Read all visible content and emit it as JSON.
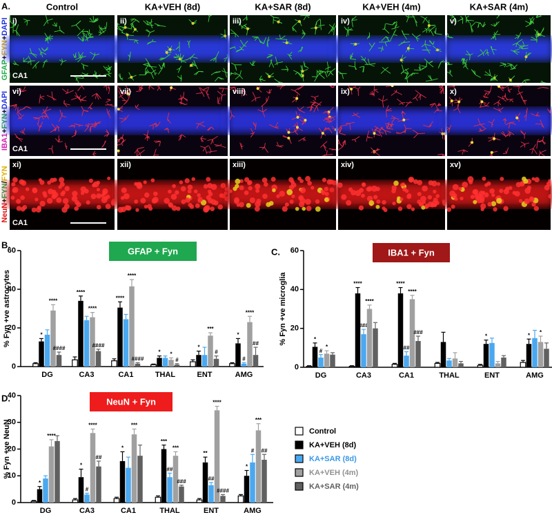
{
  "panel_a": {
    "label": "A.",
    "columns": [
      "Control",
      "KA+VEH (8d)",
      "KA+SAR (8d)",
      "KA+VEH (4m)",
      "KA+SAR (4m)"
    ],
    "rows": [
      {
        "label_parts": [
          {
            "text": "GFAP",
            "color": "#22b04a"
          },
          {
            "text": "+",
            "color": "#000000"
          },
          {
            "text": "FYN",
            "color": "#e0b000"
          },
          {
            "text": "+",
            "color": "#000000"
          },
          {
            "text": "DAPI",
            "color": "#2233dd"
          }
        ],
        "cells": [
          "i)",
          "ii)",
          "iii)",
          "iv)",
          "v)"
        ],
        "region": "CA1"
      },
      {
        "label_parts": [
          {
            "text": "IBA1",
            "color": "#d020b0"
          },
          {
            "text": "+",
            "color": "#000000"
          },
          {
            "text": "FYN",
            "color": "#22b04a"
          },
          {
            "text": "+",
            "color": "#000000"
          },
          {
            "text": "DAPI",
            "color": "#2233dd"
          }
        ],
        "cells": [
          "vi)",
          "vii)",
          "viii)",
          "ix)",
          "x)"
        ],
        "region": "CA1"
      },
      {
        "label_parts": [
          {
            "text": "NeuN",
            "color": "#e01010"
          },
          {
            "text": "+",
            "color": "#000000"
          },
          {
            "text": "FYN",
            "color": "#22b04a"
          },
          {
            "text": "/",
            "color": "#000000"
          },
          {
            "text": "FYN",
            "color": "#e0b000"
          }
        ],
        "cells": [
          "xi)",
          "xii)",
          "xiii)",
          "xiv)",
          "xv)"
        ],
        "region": "CA1"
      }
    ]
  },
  "legend": {
    "entries": [
      {
        "name": "Control",
        "color": "#ffffff",
        "text_color": "#000000"
      },
      {
        "name": "KA+VEH (8d)",
        "color": "#000000",
        "text_color": "#000000"
      },
      {
        "name": "KA+SAR (8d)",
        "color": "#4aa8f0",
        "text_color": "#3a98e8"
      },
      {
        "name": "KA+VEH (4m)",
        "color": "#a0a0a0",
        "text_color": "#909090"
      },
      {
        "name": "KA+SAR (4m)",
        "color": "#606060",
        "text_color": "#606060"
      }
    ]
  },
  "chart_data": [
    {
      "type": "bar",
      "panel": "B.",
      "title": "GFAP + Fyn",
      "title_color": "#1fa84f",
      "ylabel": "% Fyn +ve astrocytes",
      "categories": [
        "DG",
        "CA3",
        "CA1",
        "THAL",
        "ENT",
        "AMG"
      ],
      "ylim": [
        0,
        60
      ],
      "yticks": [
        0,
        20,
        40,
        60
      ],
      "series": [
        {
          "values": [
            1.5,
            3.5,
            3,
            1,
            2.5,
            1.5
          ],
          "errors": [
            0.5,
            1.5,
            1,
            0.3,
            1,
            0.5
          ],
          "annotations": [
            null,
            null,
            null,
            null,
            null,
            null
          ]
        },
        {
          "values": [
            13,
            34,
            30.5,
            4.5,
            6,
            12
          ],
          "errors": [
            1.5,
            2.5,
            3,
            1,
            2,
            2.5
          ],
          "annotations": [
            "*",
            "****",
            "****",
            "*",
            "*",
            "*"
          ]
        },
        {
          "values": [
            16.5,
            24,
            24.5,
            4.5,
            6,
            1.5
          ],
          "errors": [
            2.5,
            2,
            2.5,
            1,
            4,
            0.5
          ],
          "annotations": [
            null,
            null,
            null,
            null,
            null,
            "#"
          ]
        },
        {
          "values": [
            29,
            25.5,
            41.5,
            3.5,
            16,
            23
          ],
          "errors": [
            3,
            2.5,
            3.5,
            1,
            1.5,
            3
          ],
          "annotations": [
            "****",
            "****",
            "****",
            "*",
            "***",
            "****"
          ]
        },
        {
          "values": [
            6,
            8,
            1.5,
            1,
            4,
            6
          ],
          "errors": [
            1.5,
            1,
            0.5,
            0.5,
            1.5,
            4
          ],
          "annotations": [
            "####",
            "####",
            "####",
            "#",
            "#",
            "##"
          ]
        }
      ]
    },
    {
      "type": "bar",
      "panel": "C.",
      "title": "IBA1 + Fyn",
      "title_color": "#a01818",
      "ylabel": "% Fyn +ve microglia",
      "categories": [
        "DG",
        "CA3",
        "CA1",
        "THAL",
        "ENT",
        "AMG"
      ],
      "ylim": [
        0,
        60
      ],
      "yticks": [
        0,
        20,
        40,
        60
      ],
      "series": [
        {
          "values": [
            0.5,
            0.5,
            1.5,
            2,
            1,
            2.5
          ],
          "errors": [
            0.3,
            0.3,
            0.5,
            0.5,
            0.5,
            1
          ],
          "annotations": [
            null,
            null,
            null,
            null,
            null,
            null
          ]
        },
        {
          "values": [
            10.5,
            38,
            38,
            13,
            12,
            12
          ],
          "errors": [
            2,
            3,
            3,
            5,
            2,
            2.5
          ],
          "annotations": [
            "*",
            "****",
            "****",
            null,
            "*",
            "*"
          ]
        },
        {
          "values": [
            5,
            17,
            6,
            3.5,
            12.5,
            15
          ],
          "errors": [
            1.5,
            2.5,
            2,
            1,
            2.5,
            4
          ],
          "annotations": [
            "#",
            "###",
            "####",
            null,
            null,
            null
          ]
        },
        {
          "values": [
            7,
            30,
            35,
            4.5,
            2,
            13
          ],
          "errors": [
            1.5,
            2,
            2,
            3,
            1,
            3
          ],
          "annotations": [
            "*",
            "****",
            "****",
            null,
            null,
            "*"
          ]
        },
        {
          "values": [
            6.5,
            20,
            13.5,
            2,
            5,
            9.5
          ],
          "errors": [
            1,
            3,
            2.5,
            1,
            1,
            3
          ],
          "annotations": [
            null,
            null,
            "###",
            null,
            null,
            null
          ]
        }
      ]
    },
    {
      "type": "bar",
      "panel": "D.",
      "title": "NeuN + Fyn",
      "title_color": "#ee1c1c",
      "ylabel": "% Fyn +ve NeuN",
      "categories": [
        "DG",
        "CA3",
        "CA1",
        "THAL",
        "ENT",
        "AMG"
      ],
      "ylim": [
        0,
        40
      ],
      "yticks": [
        0,
        10,
        20,
        30,
        40
      ],
      "series": [
        {
          "values": [
            0.5,
            1,
            1.5,
            2,
            1,
            2.5
          ],
          "errors": [
            0.3,
            0.5,
            0.5,
            0.5,
            0.5,
            0.5
          ],
          "annotations": [
            null,
            null,
            null,
            null,
            null,
            null
          ]
        },
        {
          "values": [
            5,
            9.5,
            15.5,
            20,
            15,
            10
          ],
          "errors": [
            1,
            3,
            3.5,
            1.5,
            2,
            2
          ],
          "annotations": [
            "*",
            "*",
            "*",
            "***",
            "**",
            "*"
          ]
        },
        {
          "values": [
            9,
            3,
            13,
            9.5,
            6.5,
            15
          ],
          "errors": [
            1,
            0.5,
            4,
            1.5,
            1,
            3
          ],
          "annotations": [
            null,
            "#",
            null,
            "##",
            "##",
            "#"
          ]
        },
        {
          "values": [
            21,
            26,
            25.5,
            17.5,
            34.5,
            27
          ],
          "errors": [
            2.5,
            1.5,
            2,
            1.5,
            1.5,
            2.5
          ],
          "annotations": [
            "****",
            "****",
            "***",
            "***",
            "****",
            "***"
          ]
        },
        {
          "values": [
            23,
            13.5,
            17.5,
            6,
            2.5,
            16
          ],
          "errors": [
            2,
            2,
            4,
            0.5,
            0.5,
            2
          ],
          "annotations": [
            null,
            "##",
            null,
            "###",
            "####",
            "##"
          ]
        }
      ]
    }
  ]
}
